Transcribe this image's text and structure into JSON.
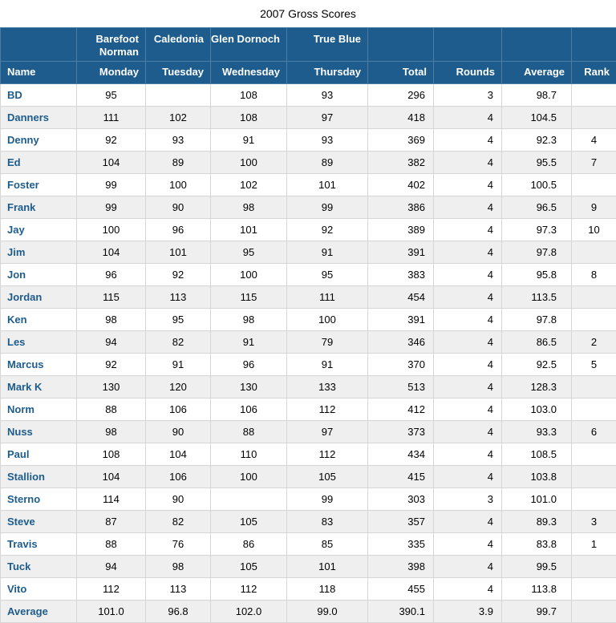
{
  "title": "2007 Gross Scores",
  "table": {
    "course_header": [
      "",
      "Barefoot Norman",
      "Caledonia",
      "Glen Dornoch",
      "True Blue",
      "",
      "",
      "",
      ""
    ],
    "columns": [
      "Name",
      "Monday",
      "Tuesday",
      "Wednesday",
      "Thursday",
      "Total",
      "Rounds",
      "Average",
      "Rank"
    ],
    "rows": [
      [
        "BD",
        "95",
        "",
        "108",
        "93",
        "296",
        "3",
        "98.7",
        ""
      ],
      [
        "Danners",
        "111",
        "102",
        "108",
        "97",
        "418",
        "4",
        "104.5",
        ""
      ],
      [
        "Denny",
        "92",
        "93",
        "91",
        "93",
        "369",
        "4",
        "92.3",
        "4"
      ],
      [
        "Ed",
        "104",
        "89",
        "100",
        "89",
        "382",
        "4",
        "95.5",
        "7"
      ],
      [
        "Foster",
        "99",
        "100",
        "102",
        "101",
        "402",
        "4",
        "100.5",
        ""
      ],
      [
        "Frank",
        "99",
        "90",
        "98",
        "99",
        "386",
        "4",
        "96.5",
        "9"
      ],
      [
        "Jay",
        "100",
        "96",
        "101",
        "92",
        "389",
        "4",
        "97.3",
        "10"
      ],
      [
        "Jim",
        "104",
        "101",
        "95",
        "91",
        "391",
        "4",
        "97.8",
        ""
      ],
      [
        "Jon",
        "96",
        "92",
        "100",
        "95",
        "383",
        "4",
        "95.8",
        "8"
      ],
      [
        "Jordan",
        "115",
        "113",
        "115",
        "111",
        "454",
        "4",
        "113.5",
        ""
      ],
      [
        "Ken",
        "98",
        "95",
        "98",
        "100",
        "391",
        "4",
        "97.8",
        ""
      ],
      [
        "Les",
        "94",
        "82",
        "91",
        "79",
        "346",
        "4",
        "86.5",
        "2"
      ],
      [
        "Marcus",
        "92",
        "91",
        "96",
        "91",
        "370",
        "4",
        "92.5",
        "5"
      ],
      [
        "Mark K",
        "130",
        "120",
        "130",
        "133",
        "513",
        "4",
        "128.3",
        ""
      ],
      [
        "Norm",
        "88",
        "106",
        "106",
        "112",
        "412",
        "4",
        "103.0",
        ""
      ],
      [
        "Nuss",
        "98",
        "90",
        "88",
        "97",
        "373",
        "4",
        "93.3",
        "6"
      ],
      [
        "Paul",
        "108",
        "104",
        "110",
        "112",
        "434",
        "4",
        "108.5",
        ""
      ],
      [
        "Stallion",
        "104",
        "106",
        "100",
        "105",
        "415",
        "4",
        "103.8",
        ""
      ],
      [
        "Sterno",
        "114",
        "90",
        "",
        "99",
        "303",
        "3",
        "101.0",
        ""
      ],
      [
        "Steve",
        "87",
        "82",
        "105",
        "83",
        "357",
        "4",
        "89.3",
        "3"
      ],
      [
        "Travis",
        "88",
        "76",
        "86",
        "85",
        "335",
        "4",
        "83.8",
        "1"
      ],
      [
        "Tuck",
        "94",
        "98",
        "105",
        "101",
        "398",
        "4",
        "99.5",
        ""
      ],
      [
        "Vito",
        "112",
        "113",
        "112",
        "118",
        "455",
        "4",
        "113.8",
        ""
      ]
    ],
    "footer": [
      "Average",
      "101.0",
      "96.8",
      "102.0",
      "99.0",
      "390.1",
      "3.9",
      "99.7",
      ""
    ]
  },
  "colors": {
    "header_bg": "#1d5c8d",
    "header_text": "#ffffff",
    "name_text": "#1d5c8d",
    "row_alt_bg": "#efefef",
    "border": "#d6d6d6"
  }
}
